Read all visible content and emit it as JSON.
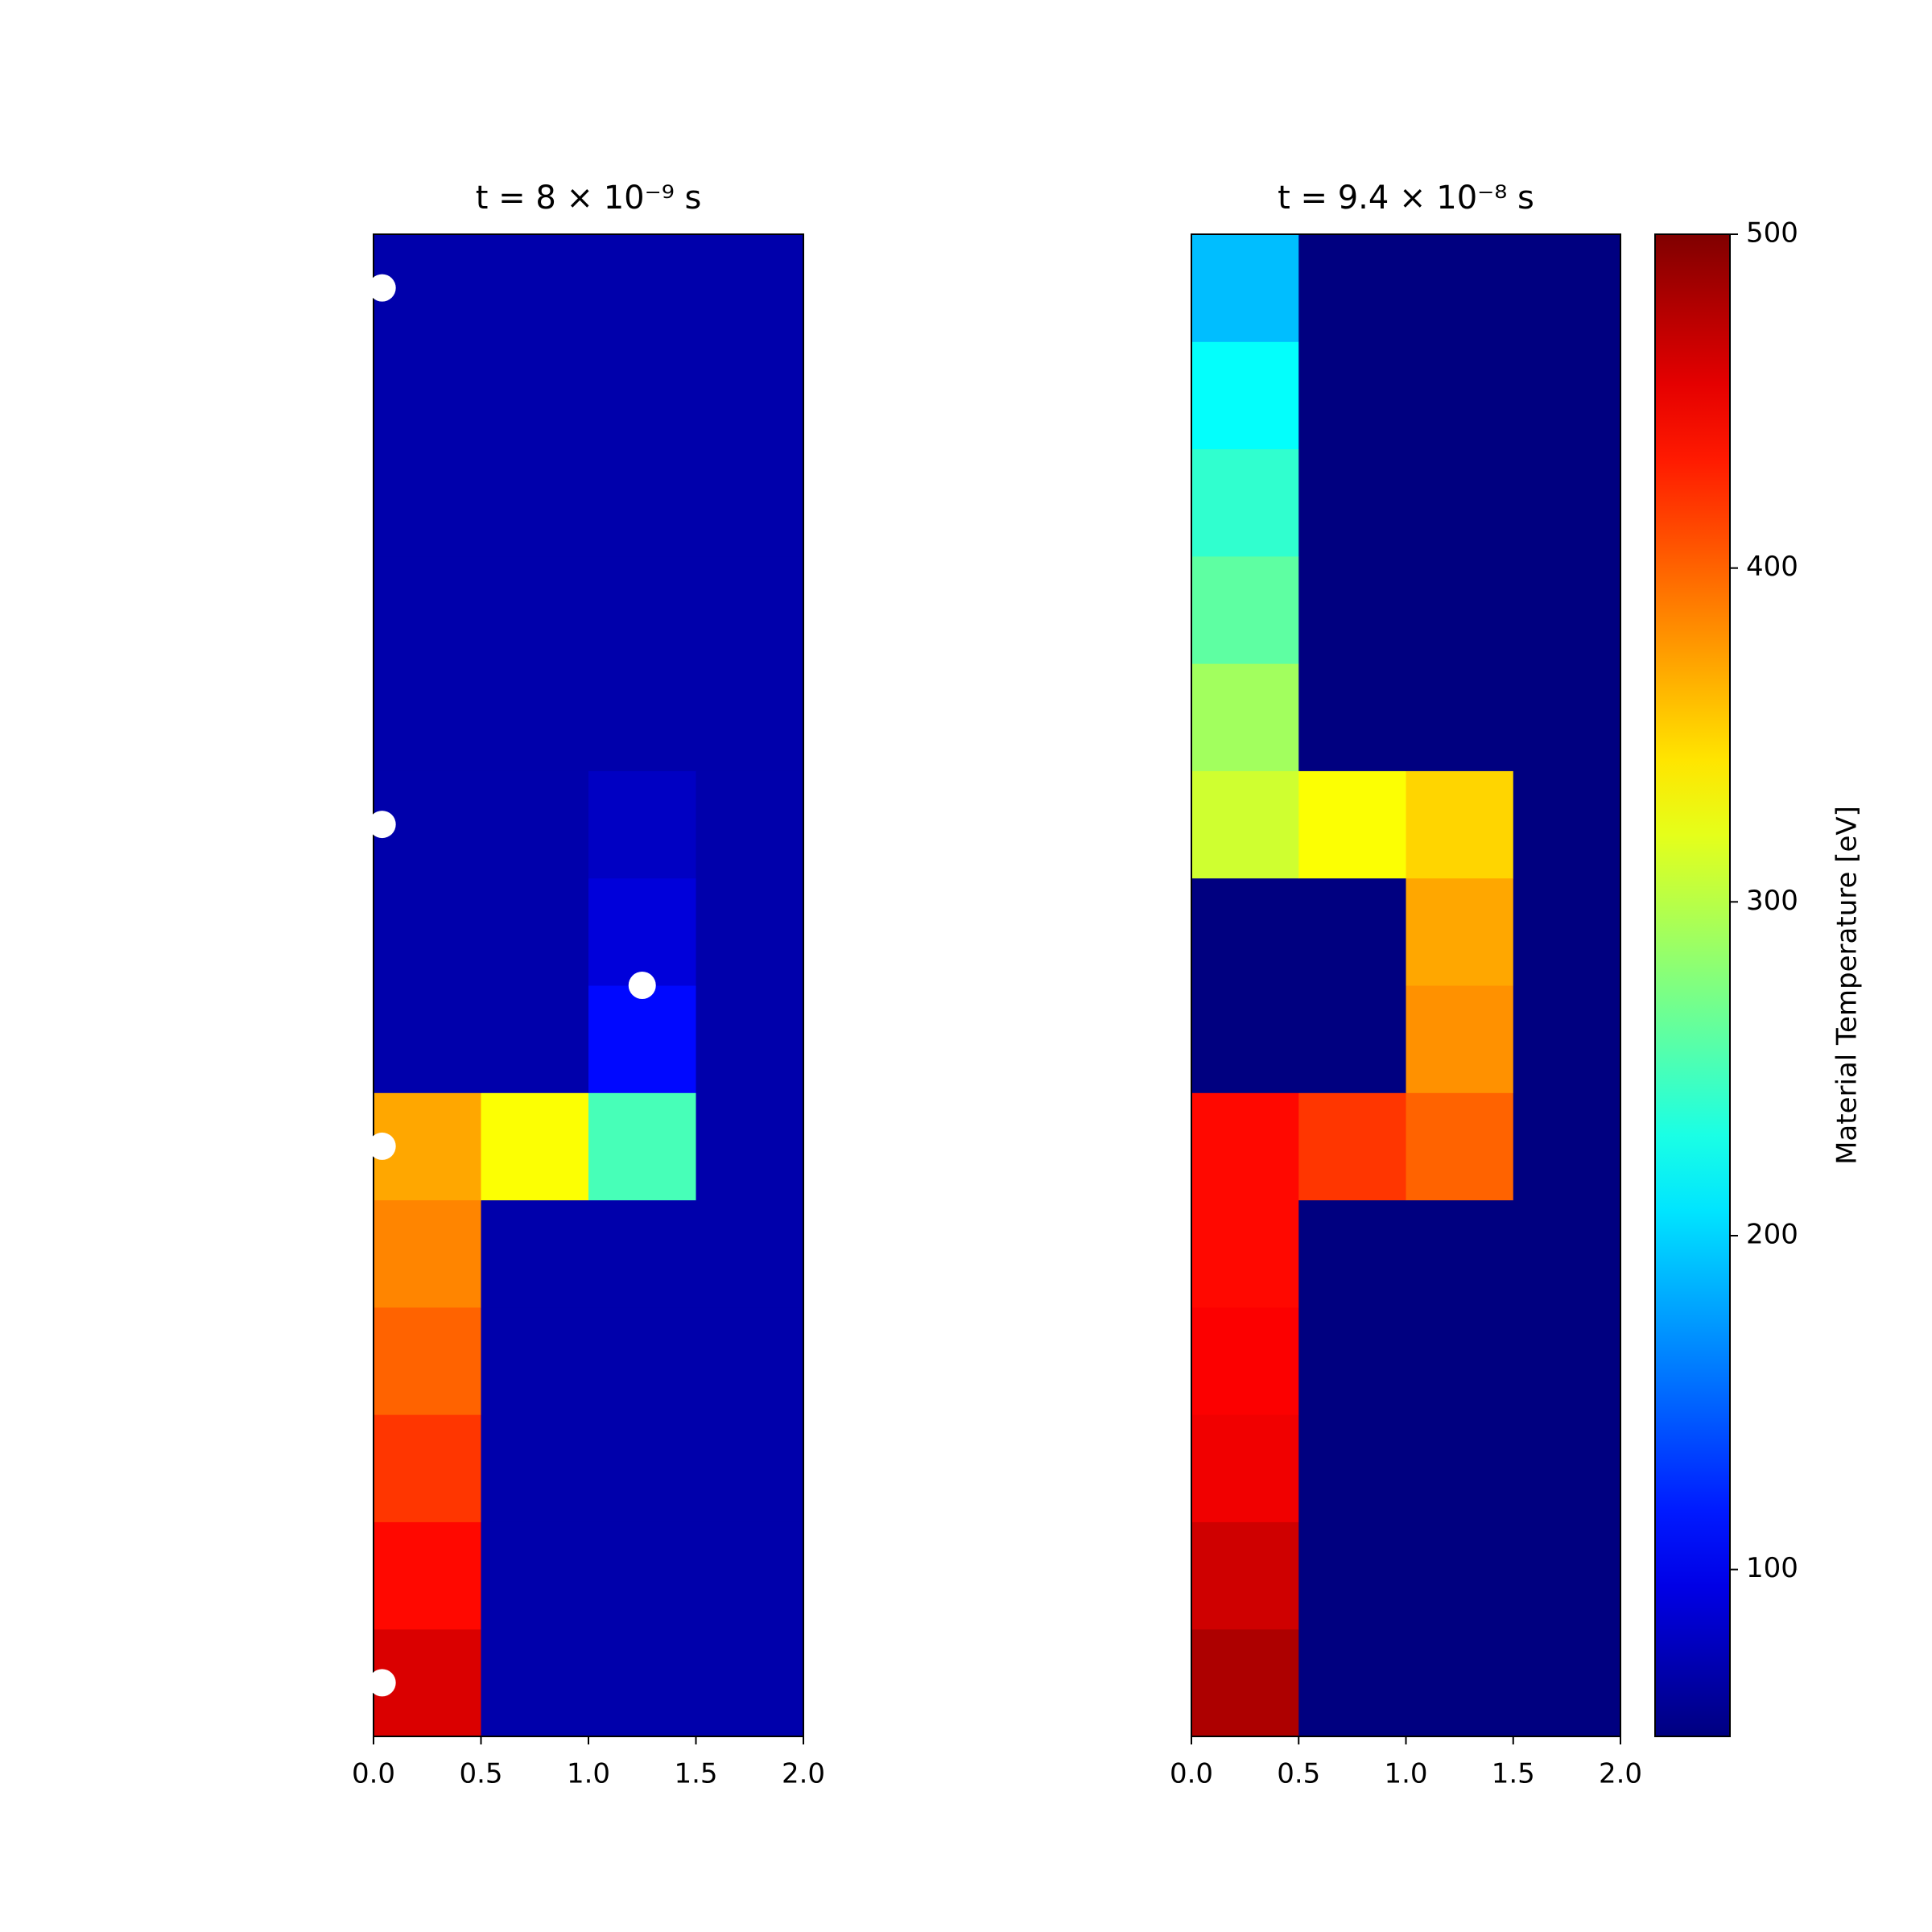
{
  "chart_data": [
    {
      "type": "heatmap",
      "title": "t = 8 × 10⁻⁹ s",
      "colormap": "jet",
      "clim": [
        50,
        500
      ],
      "xlim": [
        0,
        2
      ],
      "ylim": [
        0,
        7
      ],
      "xticks": [
        {
          "value": 0,
          "label": "0.0"
        },
        {
          "value": 0.5,
          "label": "0.5"
        },
        {
          "value": 1,
          "label": "1.0"
        },
        {
          "value": 1.5,
          "label": "1.5"
        },
        {
          "value": 2,
          "label": "2.0"
        }
      ],
      "z": [
        [
          460,
          69,
          69,
          69
        ],
        [
          440,
          69,
          69,
          69
        ],
        [
          420,
          69,
          69,
          69
        ],
        [
          400,
          69,
          69,
          69
        ],
        [
          385,
          69,
          69,
          69
        ],
        [
          370,
          330,
          250,
          69
        ],
        [
          69,
          69,
          110,
          69
        ],
        [
          69,
          69,
          90,
          69
        ],
        [
          69,
          69,
          80,
          69
        ],
        [
          69,
          69,
          69,
          69
        ],
        [
          69,
          69,
          69,
          69
        ],
        [
          69,
          69,
          69,
          69
        ],
        [
          69,
          69,
          69,
          69
        ],
        [
          69,
          69,
          69,
          69
        ]
      ],
      "points": {
        "color": "#ffffff",
        "x": [
          0.04,
          0.04,
          1.25,
          0.04,
          0.04
        ],
        "y": [
          6.75,
          4.25,
          3.5,
          2.75,
          0.25
        ]
      }
    },
    {
      "type": "heatmap",
      "title": "t = 9.4 × 10⁻⁸ s",
      "colormap": "jet",
      "clim": [
        50,
        500
      ],
      "xlim": [
        0,
        2
      ],
      "ylim": [
        0,
        7
      ],
      "xticks": [
        {
          "value": 0,
          "label": "0.0"
        },
        {
          "value": 0.5,
          "label": "0.5"
        },
        {
          "value": 1,
          "label": "1.0"
        },
        {
          "value": 1.5,
          "label": "1.5"
        },
        {
          "value": 2,
          "label": "2.0"
        }
      ],
      "z": [
        [
          480,
          50,
          50,
          50
        ],
        [
          465,
          50,
          50,
          50
        ],
        [
          450,
          50,
          50,
          50
        ],
        [
          445,
          50,
          50,
          50
        ],
        [
          440,
          50,
          50,
          50
        ],
        [
          440,
          420,
          400,
          50
        ],
        [
          50,
          50,
          380,
          50
        ],
        [
          50,
          50,
          370,
          50
        ],
        [
          310,
          330,
          350,
          50
        ],
        [
          290,
          50,
          50,
          50
        ],
        [
          260,
          50,
          50,
          50
        ],
        [
          240,
          50,
          50,
          50
        ],
        [
          220,
          50,
          50,
          50
        ],
        [
          190,
          50,
          50,
          50
        ]
      ],
      "colorbar": {
        "label": "Material Temperature [eV]",
        "ticks": [
          100,
          200,
          300,
          400,
          500
        ]
      }
    }
  ]
}
